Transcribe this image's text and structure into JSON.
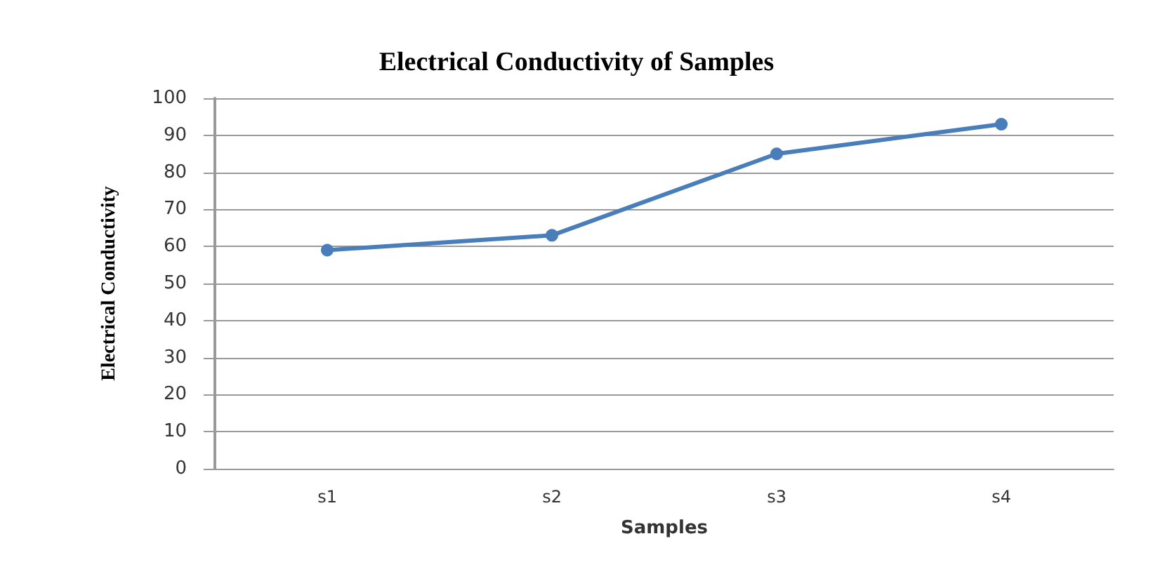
{
  "chart_data": {
    "type": "line",
    "title": "Electrical Conductivity of Samples",
    "xlabel": "Samples",
    "ylabel": "Electrical Conductivity",
    "categories": [
      "s1",
      "s2",
      "s3",
      "s4"
    ],
    "series": [
      {
        "color": "#4a7ebb",
        "values": [
          59,
          63,
          85,
          93
        ]
      }
    ],
    "ylim": [
      0,
      100
    ],
    "yticks": [
      0,
      10,
      20,
      30,
      40,
      50,
      60,
      70,
      80,
      90,
      100
    ],
    "grid": "y",
    "marker": "circle"
  }
}
